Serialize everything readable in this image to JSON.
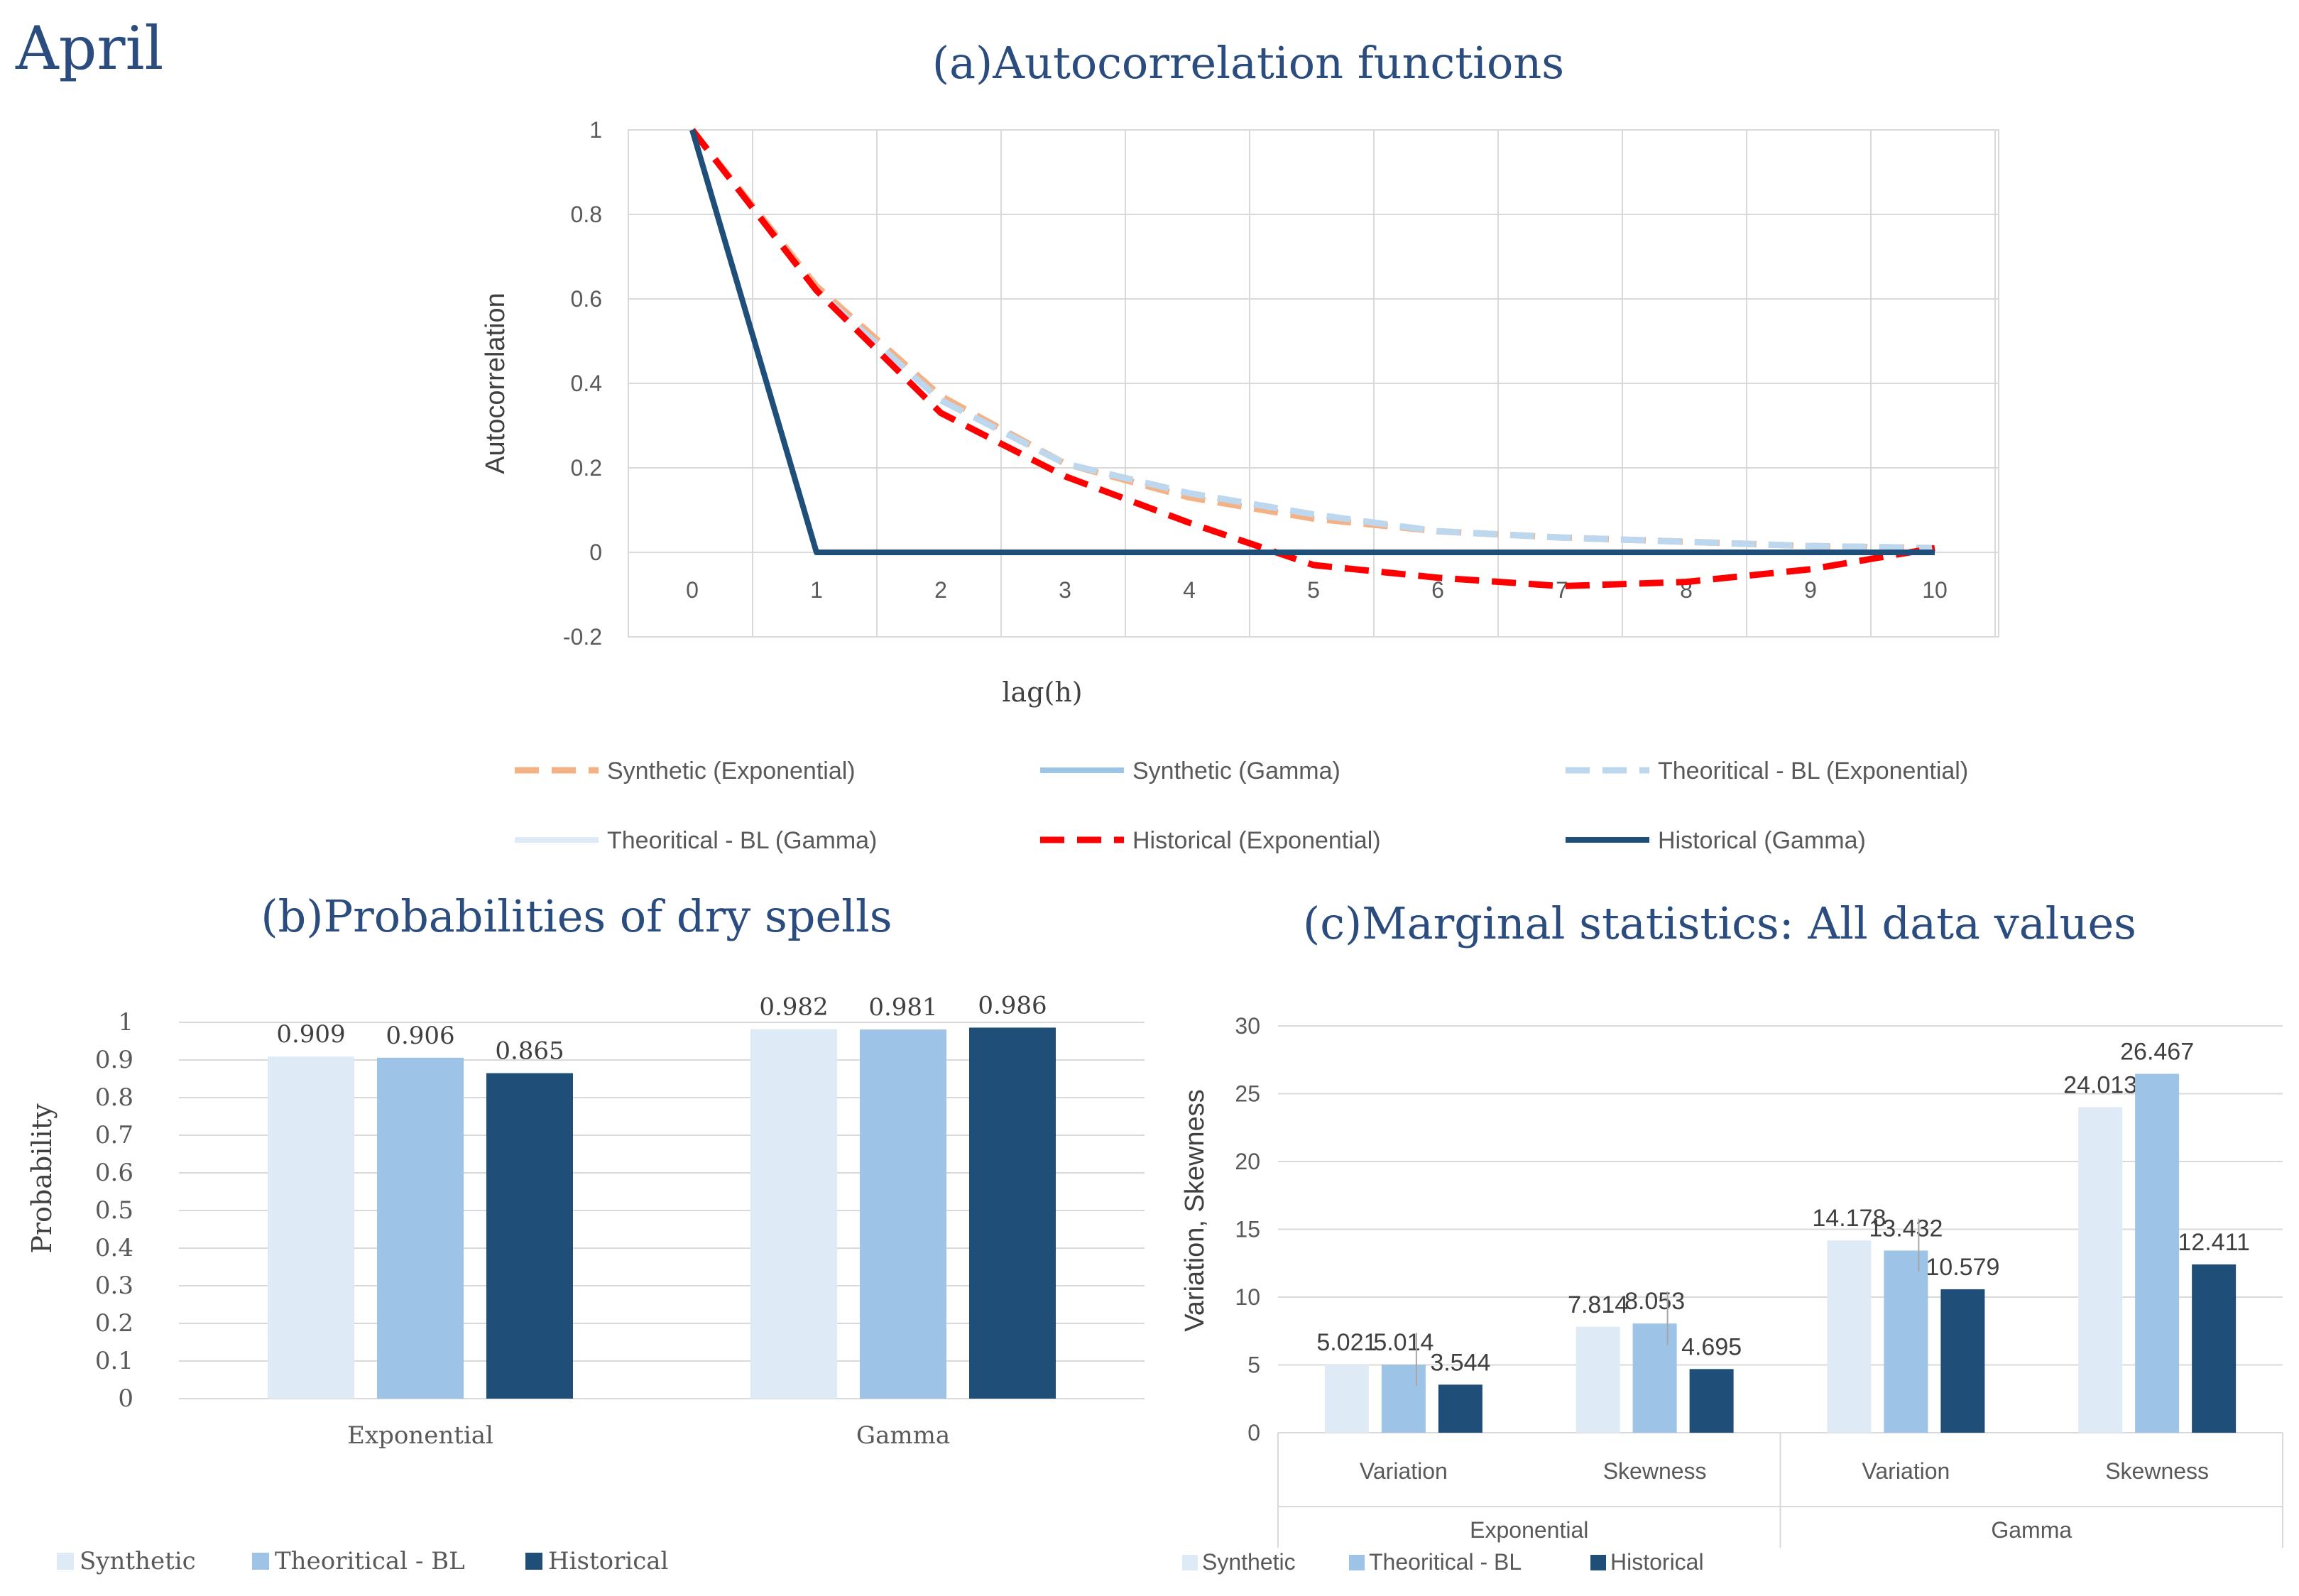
{
  "page_label": "April",
  "colors": {
    "title": "#2b4c7e",
    "synthetic_exp": "#f4b183",
    "synthetic_gamma": "#9dc3e6",
    "theoretical_exp": "#bdd7ee",
    "theoretical_gamma": "#deebf7",
    "historical_exp": "#ff0000",
    "historical_gamma": "#1f4e79",
    "bar_synthetic": "#deebf7",
    "bar_theoretical": "#9dc3e6",
    "bar_historical": "#1f4e79",
    "grid": "#d9d9d9"
  },
  "chart_data": [
    {
      "id": "a",
      "type": "line",
      "panel_label": "(a)",
      "title": "Autocorrelation functions",
      "xlabel": "lag(h)",
      "ylabel": "Autocorrelation",
      "x": [
        0,
        1,
        2,
        3,
        4,
        5,
        6,
        7,
        8,
        9,
        10
      ],
      "x_tick_labels": [
        "0",
        "1",
        "2",
        "3",
        "4",
        "5",
        "6",
        "7",
        "8",
        "9",
        "10"
      ],
      "ylim": [
        -0.2,
        1
      ],
      "y_ticks": [
        -0.2,
        0,
        0.2,
        0.4,
        0.6,
        0.8,
        1
      ],
      "y_tick_labels": [
        "-0.2",
        "0",
        "0.2",
        "0.4",
        "0.6",
        "0.8",
        "1"
      ],
      "grid": true,
      "legend_position": "bottom",
      "series": [
        {
          "name": "Synthetic (Exponential)",
          "style": "dashed",
          "color_key": "synthetic_exp",
          "values": [
            1,
            0.63,
            0.37,
            0.21,
            0.13,
            0.08,
            0.05,
            0.035,
            0.025,
            0.015,
            0.01
          ]
        },
        {
          "name": "Synthetic (Gamma)",
          "style": "solid",
          "color_key": "synthetic_gamma",
          "values": [
            1,
            0,
            0,
            0,
            0,
            0,
            0,
            0,
            0,
            0,
            0
          ]
        },
        {
          "name": "Theoritical - BL (Exponential)",
          "style": "dashed",
          "color_key": "theoretical_exp",
          "values": [
            1,
            0.62,
            0.36,
            0.21,
            0.14,
            0.09,
            0.05,
            0.035,
            0.025,
            0.015,
            0.01
          ]
        },
        {
          "name": "Theoritical - BL (Gamma)",
          "style": "solid",
          "color_key": "theoretical_gamma",
          "values": [
            1,
            0,
            0,
            0,
            0,
            0,
            0,
            0,
            0,
            0,
            0
          ]
        },
        {
          "name": "Historical (Exponential)",
          "style": "dashed",
          "color_key": "historical_exp",
          "values": [
            1,
            0.62,
            0.33,
            0.18,
            0.07,
            -0.03,
            -0.06,
            -0.08,
            -0.07,
            -0.04,
            0.01
          ]
        },
        {
          "name": "Historical (Gamma)",
          "style": "solid",
          "color_key": "historical_gamma",
          "values": [
            1,
            0,
            0,
            0,
            0,
            0,
            0,
            0,
            0,
            0,
            0
          ]
        }
      ]
    },
    {
      "id": "b",
      "type": "bar",
      "panel_label": "(b)",
      "title": "Probabilities of dry spells",
      "xlabel": "",
      "ylabel": "Probability",
      "categories": [
        "Exponential",
        "Gamma"
      ],
      "ylim": [
        0,
        1
      ],
      "y_ticks": [
        0,
        0.1,
        0.2,
        0.3,
        0.4,
        0.5,
        0.6,
        0.7,
        0.8,
        0.9,
        1
      ],
      "y_tick_labels": [
        "0",
        "0.1",
        "0.2",
        "0.3",
        "0.4",
        "0.5",
        "0.6",
        "0.7",
        "0.8",
        "0.9",
        "1"
      ],
      "legend_position": "bottom",
      "series": [
        {
          "name": "Synthetic",
          "color_key": "bar_synthetic",
          "values": [
            0.909,
            0.982
          ],
          "labels": [
            "0.909",
            "0.982"
          ]
        },
        {
          "name": "Theoritical - BL",
          "color_key": "bar_theoretical",
          "values": [
            0.906,
            0.981
          ],
          "labels": [
            "0.906",
            "0.981"
          ]
        },
        {
          "name": "Historical",
          "color_key": "bar_historical",
          "values": [
            0.865,
            0.986
          ],
          "labels": [
            "0.865",
            "0.986"
          ]
        }
      ]
    },
    {
      "id": "c",
      "type": "bar",
      "panel_label": "(c)",
      "title": "Marginal statistics: All data values",
      "xlabel": "",
      "ylabel": "Variation, Skewness",
      "categories": [
        "Variation",
        "Skewness",
        "Variation",
        "Skewness"
      ],
      "groups": [
        "Exponential",
        "Gamma"
      ],
      "ylim": [
        0,
        30
      ],
      "y_ticks": [
        0,
        5,
        10,
        15,
        20,
        25,
        30
      ],
      "y_tick_labels": [
        "0",
        "5",
        "10",
        "15",
        "20",
        "25",
        "30"
      ],
      "legend_position": "bottom",
      "series": [
        {
          "name": "Synthetic",
          "color_key": "bar_synthetic",
          "values": [
            5.021,
            7.814,
            14.178,
            24.013
          ],
          "labels": [
            "5.021",
            "7.814",
            "14.178",
            "24.013"
          ]
        },
        {
          "name": "Theoritical - BL",
          "color_key": "bar_theoretical",
          "values": [
            5.014,
            8.053,
            13.432,
            26.467
          ],
          "labels": [
            "5.014",
            "8.053",
            "13.432",
            "26.467"
          ]
        },
        {
          "name": "Historical",
          "color_key": "bar_historical",
          "values": [
            3.544,
            4.695,
            10.579,
            12.411
          ],
          "labels": [
            "3.544",
            "4.695",
            "10.579",
            "12.411"
          ]
        }
      ]
    }
  ]
}
